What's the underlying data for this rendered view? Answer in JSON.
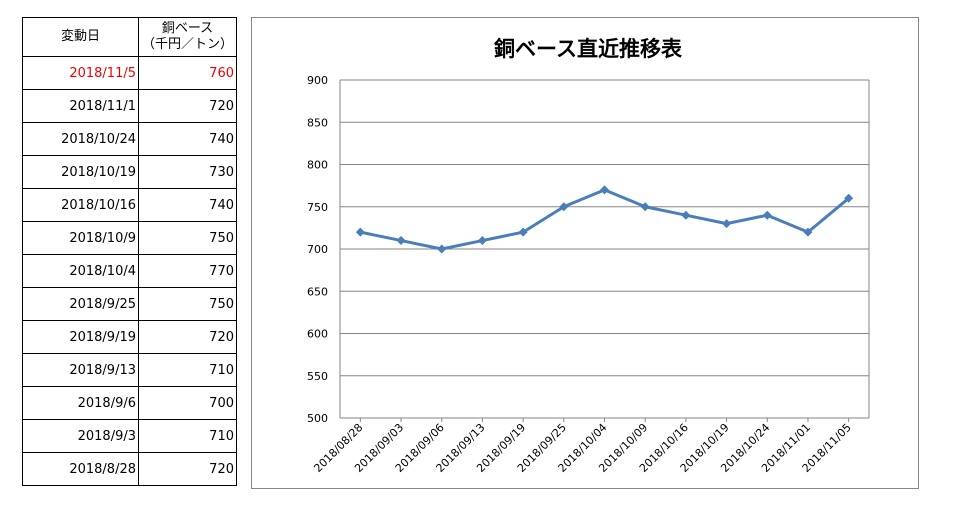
{
  "table": {
    "header_date": "変動日",
    "header_price_line1": "銅ベース",
    "header_price_line2": "（千円／トン）",
    "rows": [
      {
        "date": "2018/11/5",
        "price": "760"
      },
      {
        "date": "2018/11/1",
        "price": "720"
      },
      {
        "date": "2018/10/24",
        "price": "740"
      },
      {
        "date": "2018/10/19",
        "price": "730"
      },
      {
        "date": "2018/10/16",
        "price": "740"
      },
      {
        "date": "2018/10/9",
        "price": "750"
      },
      {
        "date": "2018/10/4",
        "price": "770"
      },
      {
        "date": "2018/9/25",
        "price": "750"
      },
      {
        "date": "2018/9/19",
        "price": "720"
      },
      {
        "date": "2018/9/13",
        "price": "710"
      },
      {
        "date": "2018/9/6",
        "price": "700"
      },
      {
        "date": "2018/9/3",
        "price": "710"
      },
      {
        "date": "2018/8/28",
        "price": "720"
      }
    ],
    "highlight_color": "#ee0000"
  },
  "chart_data": {
    "type": "line",
    "title": "銅ベース直近推移表",
    "categories": [
      "2018/08/28",
      "2018/09/03",
      "2018/09/06",
      "2018/09/13",
      "2018/09/19",
      "2018/09/25",
      "2018/10/04",
      "2018/10/09",
      "2018/10/16",
      "2018/10/19",
      "2018/10/24",
      "2018/11/01",
      "2018/11/05"
    ],
    "series": [
      {
        "values": [
          720,
          710,
          700,
          710,
          720,
          750,
          770,
          750,
          740,
          730,
          740,
          720,
          760
        ],
        "color": "#4a7ebb",
        "marker": "diamond"
      }
    ],
    "ylim": [
      500,
      900
    ],
    "yticks": [
      "500",
      "550",
      "600",
      "650",
      "700",
      "750",
      "800",
      "850",
      "900"
    ],
    "grid": true,
    "legend": "none"
  }
}
